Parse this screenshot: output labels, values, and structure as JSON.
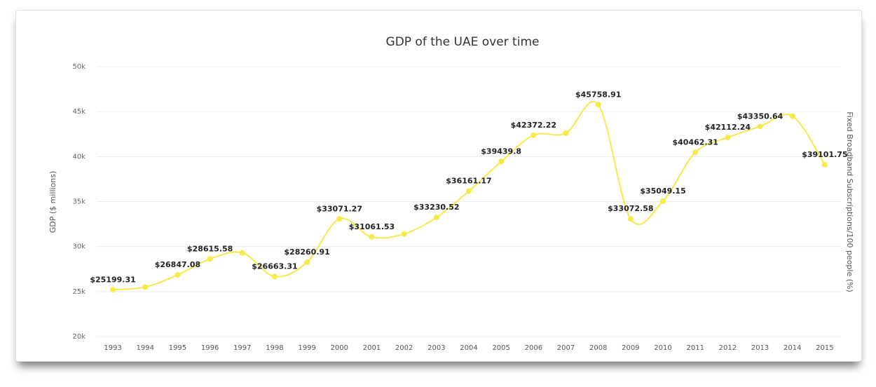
{
  "chart_data": {
    "type": "line",
    "title": "GDP of the UAE over time",
    "y_label": "GDP ($ millions)",
    "y2_label": "Fixed Broadband Subscriptions/100 people (%)",
    "categories": [
      "1993",
      "1994",
      "1995",
      "1996",
      "1997",
      "1998",
      "1999",
      "2000",
      "2001",
      "2002",
      "2003",
      "2004",
      "2005",
      "2006",
      "2007",
      "2008",
      "2009",
      "2010",
      "2011",
      "2012",
      "2013",
      "2014",
      "2015"
    ],
    "values": [
      25199.31,
      25500,
      26847.08,
      28615.58,
      29300,
      26663.31,
      28260.91,
      33071.27,
      31061.53,
      31400,
      33230.52,
      36161.17,
      39439.8,
      42372.22,
      42600,
      45758.91,
      33072.58,
      35049.15,
      40462.31,
      42112.24,
      43350.64,
      44500,
      39101.75
    ],
    "value_labels": [
      "$25199.31",
      null,
      "$26847.08",
      "$28615.58",
      null,
      "$26663.31",
      "$28260.91",
      "$33071.27",
      "$31061.53",
      null,
      "$33230.52",
      "$36161.17",
      "$39439.8",
      "$42372.22",
      null,
      "$45758.91",
      "$33072.58",
      "$35049.15",
      "$40462.31",
      "$42112.24",
      "$43350.64",
      null,
      "$39101.75"
    ],
    "color": "#f7e94a",
    "ylim": [
      20000,
      50000
    ],
    "yticks": [
      {
        "value": 20000,
        "label": "20k"
      },
      {
        "value": 25000,
        "label": "25k"
      },
      {
        "value": 30000,
        "label": "30k"
      },
      {
        "value": 35000,
        "label": "35k"
      },
      {
        "value": 40000,
        "label": "40k"
      },
      {
        "value": 45000,
        "label": "45k"
      },
      {
        "value": 50000,
        "label": "50k"
      }
    ],
    "grid": true
  }
}
